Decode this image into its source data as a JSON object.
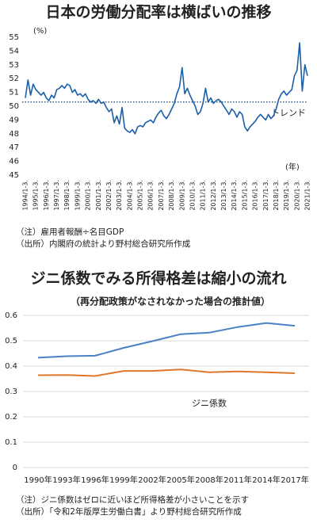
{
  "chart_data": [
    {
      "type": "line",
      "title": "日本の労働分配率は横ばいの推移",
      "unit_label": "(%)",
      "x_unit_label": "(年)",
      "categories": [
        "1994/1-3.",
        null,
        null,
        null,
        "1995/1-3.",
        null,
        null,
        null,
        "1996/1-3.",
        null,
        null,
        null,
        "1997/1-3.",
        null,
        null,
        null,
        "1998/1-3.",
        null,
        null,
        null,
        "1999/1-3.",
        null,
        null,
        null,
        "2000/1-3.",
        null,
        null,
        null,
        "2001/1-3.",
        null,
        null,
        null,
        "2002/1-3.",
        null,
        null,
        null,
        "2003/1-3.",
        null,
        null,
        null,
        "2004/1-3.",
        null,
        null,
        null,
        "2005/1-3.",
        null,
        null,
        null,
        "2006/1-3.",
        null,
        null,
        null,
        "2007/1-3.",
        null,
        null,
        null,
        "2008/1-3.",
        null,
        null,
        null,
        "2009/1-3.",
        null,
        null,
        null,
        "2010/1-3.",
        null,
        null,
        null,
        "2011/1-3.",
        null,
        null,
        null,
        "2012/1-3.",
        null,
        null,
        null,
        "2013/1-3.",
        null,
        null,
        null,
        "2014/1-3.",
        null,
        null,
        null,
        "2015/1-3.",
        null,
        null,
        null,
        "2016/1-3.",
        null,
        null,
        null,
        "2017/1-3.",
        null,
        null,
        null,
        "2018/1-3.",
        null,
        null,
        null,
        "2019/1-3.",
        null,
        null,
        null,
        "2020/1-3.",
        null,
        null,
        null,
        "2021/1-3."
      ],
      "series": [
        {
          "color": "#1a5fa8",
          "values": [
            50.6,
            51.9,
            50.8,
            51.6,
            51.2,
            51.0,
            50.8,
            51.0,
            50.6,
            50.4,
            50.8,
            50.6,
            51.2,
            51.3,
            51.5,
            51.3,
            51.6,
            51.5,
            51.0,
            51.2,
            50.8,
            50.9,
            50.7,
            50.9,
            50.5,
            50.3,
            50.4,
            50.2,
            50.5,
            50.2,
            50.3,
            49.9,
            49.6,
            49.8,
            48.8,
            49.3,
            48.7,
            49.9,
            48.4,
            48.2,
            48.1,
            48.3,
            48.0,
            48.5,
            48.6,
            48.5,
            48.8,
            48.9,
            49.0,
            48.8,
            49.2,
            49.5,
            49.7,
            49.3,
            49.1,
            49.4,
            49.8,
            50.2,
            50.9,
            51.4,
            52.8,
            50.9,
            51.3,
            50.8,
            50.4,
            50.0,
            49.4,
            49.6,
            50.2,
            51.3,
            50.3,
            50.6,
            50.2,
            50.4,
            50.5,
            50.3,
            50.0,
            49.7,
            49.4,
            49.8,
            49.6,
            49.2,
            49.6,
            49.4,
            48.5,
            48.2,
            48.5,
            48.7,
            48.9,
            49.2,
            49.4,
            49.2,
            49.0,
            49.4,
            49.1,
            49.3,
            49.8,
            50.5,
            50.9,
            51.1,
            50.8,
            51.0,
            51.2,
            52.2,
            52.6,
            54.6,
            51.1,
            53.0,
            52.2
          ]
        }
      ],
      "trend": {
        "label": "トレンド",
        "value": 50.3,
        "color": "#1a3f7a"
      },
      "ylim": [
        45,
        55
      ],
      "yticks": [
        45,
        46,
        47,
        48,
        49,
        50,
        51,
        52,
        53,
        54,
        55
      ],
      "grid": false,
      "notes": [
        "（注）雇用者報酬÷名目GDP",
        "（出所）内閣府の統計より野村総合研究所作成"
      ]
    },
    {
      "type": "line",
      "title": "ジニ係数でみる所得格差は縮小の流れ",
      "subtitle": "（再分配政策がなされなかった場合の推計値）",
      "categories": [
        "1990年",
        "1993年",
        "1996年",
        "1999年",
        "2002年",
        "2005年",
        "2008年",
        "2011年",
        "2014年",
        "2017年"
      ],
      "series": [
        {
          "color": "#4a80c4",
          "values": [
            0.433,
            0.439,
            0.441,
            0.472,
            0.498,
            0.526,
            0.532,
            0.554,
            0.57,
            0.559
          ]
        },
        {
          "name": "ジニ係数",
          "color": "#e0782a",
          "values": [
            0.364,
            0.365,
            0.361,
            0.381,
            0.381,
            0.387,
            0.376,
            0.379,
            0.376,
            0.372
          ]
        }
      ],
      "ylim": [
        0,
        0.6
      ],
      "yticks": [
        0,
        0.1,
        0.2,
        0.3,
        0.4,
        0.5,
        0.6
      ],
      "grid": true,
      "notes": [
        "（注）ジニ係数はゼロに近いほど所得格差が小さいことを示す",
        "（出所）「令和2年版厚生労働白書」より野村総合研究所作成"
      ]
    }
  ]
}
